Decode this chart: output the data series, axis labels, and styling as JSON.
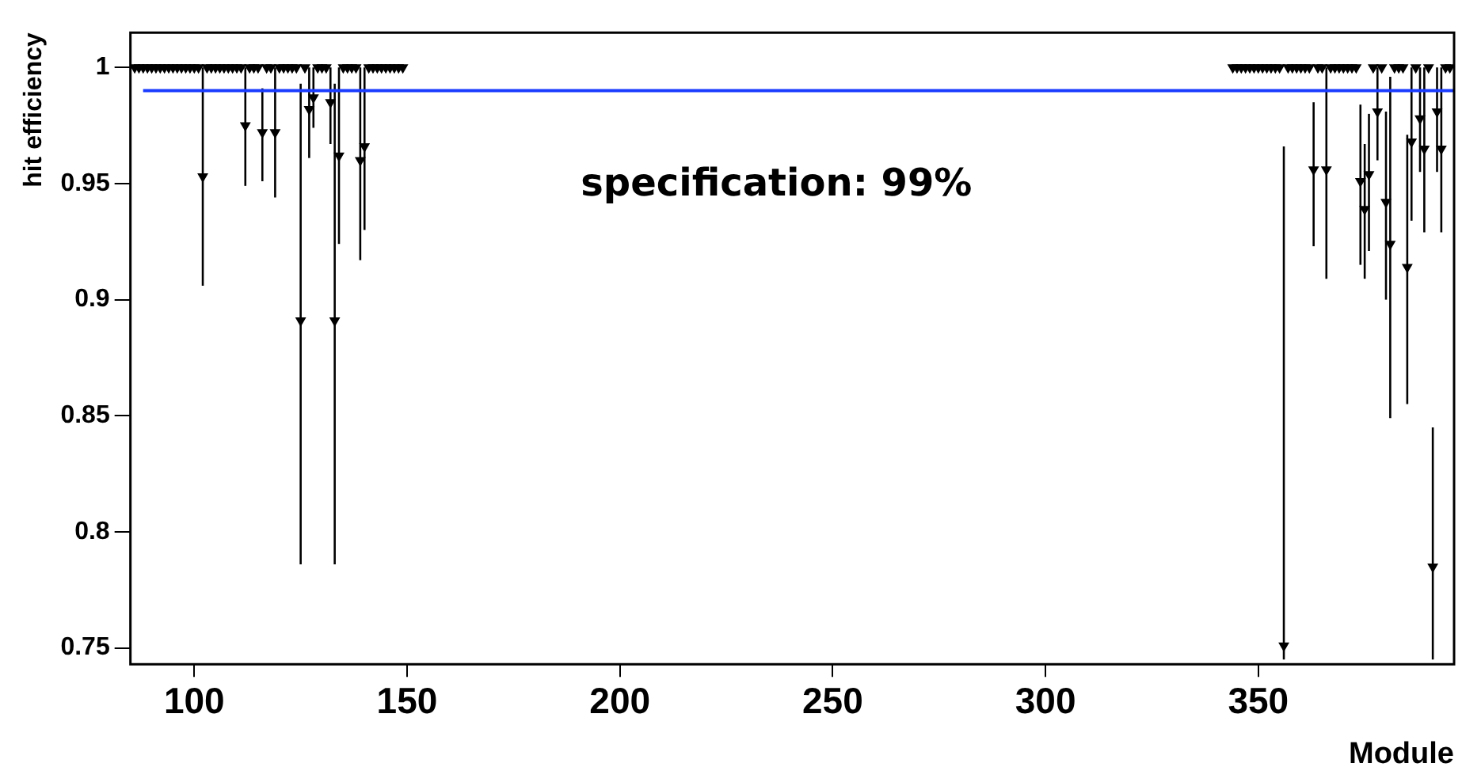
{
  "chart_data": {
    "type": "scatter",
    "xlabel": "Module",
    "ylabel": "hit efficiency",
    "xlim": [
      85,
      396
    ],
    "xticks": [
      100,
      150,
      200,
      250,
      300,
      350
    ],
    "ylim": [
      0.743,
      1.015
    ],
    "yticks": [
      0.75,
      0.8,
      0.85,
      0.9,
      0.95,
      1
    ],
    "grid": false,
    "legend": false,
    "marker": "triangle",
    "ref_lines": [
      {
        "axis": "y",
        "value": 0.99,
        "label": "specification: 99%",
        "color": "#1a3cff"
      }
    ],
    "series": [
      {
        "color": "#000000",
        "x": [
          86,
          87,
          88,
          89,
          90,
          91,
          92,
          93,
          94,
          95,
          96,
          97,
          98,
          99,
          100,
          101,
          102,
          103,
          104,
          105,
          106,
          107,
          108,
          109,
          110,
          111,
          112,
          113,
          114,
          115,
          116,
          117,
          118,
          119,
          120,
          121,
          122,
          123,
          124,
          125,
          126,
          127,
          128,
          129,
          130,
          131,
          132,
          133,
          134,
          135,
          136,
          137,
          138,
          139,
          140,
          141,
          142,
          143,
          144,
          145,
          146,
          147,
          148,
          149,
          344,
          345,
          346,
          347,
          348,
          349,
          350,
          351,
          352,
          353,
          354,
          355,
          356,
          357,
          358,
          359,
          360,
          361,
          362,
          363,
          364,
          365,
          366,
          367,
          368,
          369,
          370,
          371,
          372,
          373,
          374,
          375,
          376,
          377,
          378,
          379,
          380,
          381,
          382,
          383,
          384,
          385,
          386,
          387,
          388,
          389,
          390,
          391,
          392,
          393,
          394,
          395
        ],
        "values": [
          1,
          1,
          1,
          1,
          1,
          1,
          1,
          1,
          1,
          1,
          1,
          1,
          1,
          1,
          1,
          1,
          0.953,
          1,
          1,
          1,
          1,
          1,
          1,
          1,
          1,
          1,
          0.975,
          1,
          1,
          1,
          0.972,
          1,
          1,
          0.972,
          1,
          1,
          1,
          1,
          1,
          0.891,
          1,
          0.982,
          0.987,
          1,
          1,
          1,
          0.985,
          0.891,
          0.962,
          1,
          1,
          1,
          1,
          0.96,
          0.966,
          1,
          1,
          1,
          1,
          1,
          1,
          1,
          1,
          1,
          1,
          1,
          1,
          1,
          1,
          1,
          1,
          1,
          1,
          1,
          1,
          1,
          0.751,
          1,
          1,
          1,
          1,
          1,
          1,
          0.956,
          1,
          1,
          0.956,
          1,
          1,
          1,
          1,
          1,
          1,
          1,
          0.951,
          0.939,
          0.954,
          1,
          0.981,
          1,
          0.942,
          0.924,
          1,
          1,
          1,
          0.914,
          0.968,
          1,
          0.978,
          0.965,
          1,
          0.785,
          0.981,
          0.965,
          1,
          1
        ],
        "errors": [
          null,
          null,
          null,
          null,
          null,
          null,
          null,
          null,
          null,
          null,
          null,
          null,
          null,
          null,
          null,
          null,
          [
            0.906,
            1
          ],
          null,
          null,
          null,
          null,
          null,
          null,
          null,
          null,
          null,
          [
            0.949,
            1
          ],
          null,
          null,
          null,
          [
            0.951,
            0.991
          ],
          null,
          null,
          [
            0.944,
            1
          ],
          null,
          null,
          null,
          null,
          null,
          [
            0.786,
            0.993
          ],
          null,
          [
            0.961,
            1
          ],
          [
            0.974,
            1
          ],
          null,
          null,
          null,
          [
            0.967,
            1
          ],
          [
            0.786,
            0.993
          ],
          [
            0.924,
            1
          ],
          null,
          null,
          null,
          null,
          [
            0.917,
            1
          ],
          [
            0.93,
            1
          ],
          null,
          null,
          null,
          null,
          null,
          null,
          null,
          null,
          null,
          null,
          null,
          null,
          null,
          null,
          null,
          null,
          null,
          null,
          null,
          null,
          null,
          [
            0.745,
            0.966
          ],
          null,
          null,
          null,
          null,
          null,
          null,
          [
            0.923,
            0.985
          ],
          null,
          null,
          [
            0.909,
            1
          ],
          null,
          null,
          null,
          null,
          null,
          null,
          null,
          [
            0.915,
            0.984
          ],
          [
            0.909,
            0.967
          ],
          [
            0.921,
            0.98
          ],
          null,
          [
            0.96,
            1
          ],
          null,
          [
            0.9,
            0.981
          ],
          [
            0.849,
            0.996
          ],
          null,
          null,
          null,
          [
            0.855,
            0.971
          ],
          [
            0.934,
            1
          ],
          null,
          [
            0.955,
            1
          ],
          [
            0.929,
            1
          ],
          null,
          [
            0.745,
            0.845
          ],
          [
            0.955,
            1
          ],
          [
            0.929,
            1
          ],
          null,
          null
        ]
      }
    ]
  }
}
